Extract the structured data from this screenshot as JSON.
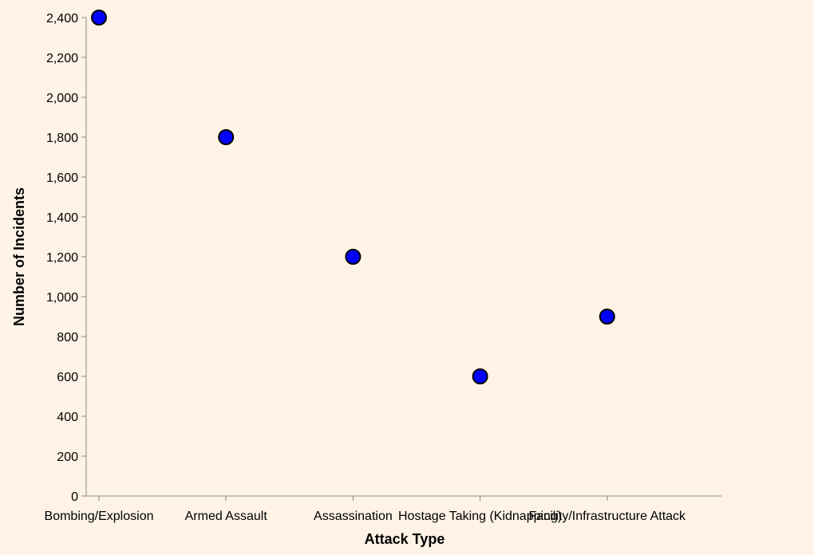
{
  "chart_data": {
    "type": "scatter",
    "title": "",
    "xlabel": "Attack Type",
    "ylabel": "Number of Incidents",
    "categories": [
      "Bombing/Explosion",
      "Armed Assault",
      "Assassination",
      "Hostage Taking (Kidnapping)",
      "Facility/Infrastructure Attack"
    ],
    "values": [
      2400,
      1800,
      1200,
      600,
      900
    ],
    "ylim": [
      0,
      2400
    ],
    "yticks": [
      0,
      200,
      400,
      600,
      800,
      1000,
      1200,
      1400,
      1600,
      1800,
      2000,
      2200,
      2400
    ],
    "ytick_labels": [
      "0",
      "200",
      "400",
      "600",
      "800",
      "1,000",
      "1,200",
      "1,400",
      "1,600",
      "1,800",
      "2,000",
      "2,200",
      "2,400"
    ],
    "grid": false,
    "legend": "none",
    "background_color": "#fef3e6",
    "point_fill_color": "#0000ff",
    "point_stroke_color": "#000000",
    "axis_color": "#888888"
  }
}
